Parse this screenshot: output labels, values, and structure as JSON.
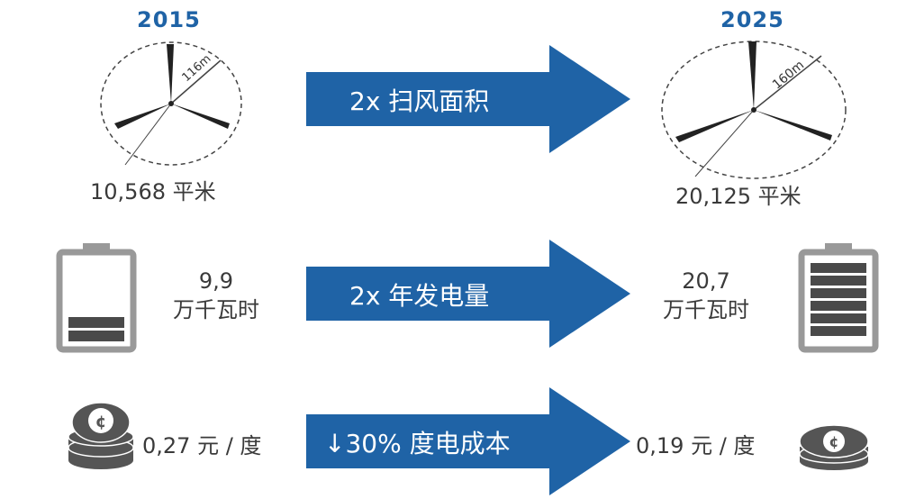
{
  "years": {
    "left": "2015",
    "right": "2025"
  },
  "rows": [
    {
      "arrow_label": "2x 扫风面积",
      "left_value": "10,568 平米",
      "right_value": "20,125 平米",
      "left_radius_label": "116m",
      "right_radius_label": "160m"
    },
    {
      "arrow_label": "2x 年发电量",
      "left_value_line1": "9,9",
      "left_value_line2": "万千瓦时",
      "right_value_line1": "20,7",
      "right_value_line2": "万千瓦时"
    },
    {
      "arrow_label": "↓30% 度电成本",
      "left_value": "0,27 元 / 度",
      "right_value": "0,19 元 / 度",
      "coin_symbol": "¢"
    }
  ],
  "colors": {
    "arrow": "#1f63a6",
    "year": "#1f63a6",
    "text": "#3a3a3a",
    "icon": "#555555"
  }
}
